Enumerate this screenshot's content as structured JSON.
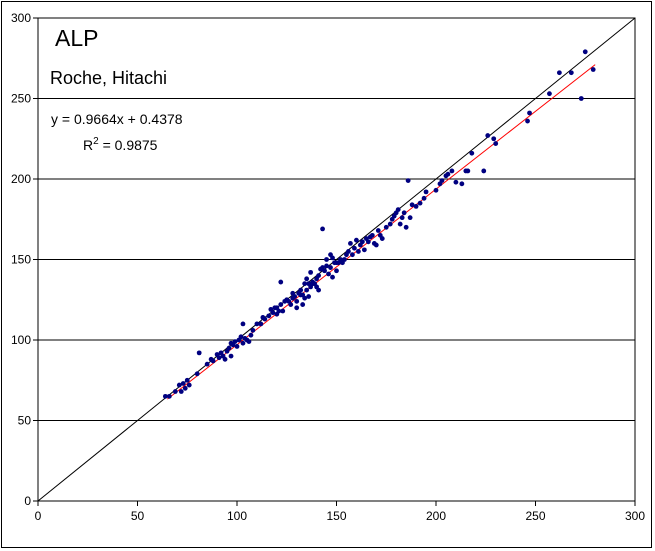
{
  "chart_data": {
    "type": "scatter",
    "title": "ALP",
    "subtitle": "Roche, Hitachi",
    "regression": {
      "equation": "y = 0.9664x + 0.4378",
      "r2_prefix": "R",
      "r2_exp": "2",
      "r2_value": " = 0.9875",
      "slope": 0.9664,
      "intercept": 0.4378,
      "x_range": [
        65,
        280
      ],
      "color": "#ff0000"
    },
    "identity_line": {
      "x_range": [
        0,
        300
      ],
      "color": "#000000"
    },
    "xlim": [
      0,
      300
    ],
    "ylim": [
      0,
      300
    ],
    "xticks": [
      0,
      50,
      100,
      150,
      200,
      250,
      300
    ],
    "yticks": [
      0,
      50,
      100,
      150,
      200,
      250,
      300
    ],
    "grid": "horizontal",
    "point_color": "#000080",
    "x": [
      64,
      66,
      69,
      71,
      72,
      73,
      74,
      75,
      76,
      80,
      81,
      85,
      87,
      88,
      90,
      91,
      92,
      93,
      94,
      95,
      96,
      97,
      97,
      98,
      99,
      100,
      101,
      102,
      103,
      103,
      104,
      105,
      106,
      107,
      108,
      110,
      112,
      113,
      114,
      116,
      117,
      118,
      119,
      120,
      120,
      121,
      122,
      122,
      123,
      124,
      125,
      126,
      127,
      128,
      128,
      129,
      130,
      130,
      131,
      132,
      132,
      133,
      133,
      134,
      134,
      135,
      135,
      136,
      136,
      137,
      137,
      138,
      138,
      139,
      140,
      140,
      141,
      141,
      142,
      143,
      143,
      144,
      145,
      145,
      146,
      147,
      147,
      148,
      148,
      149,
      150,
      150,
      151,
      152,
      153,
      154,
      155,
      156,
      157,
      158,
      159,
      160,
      161,
      162,
      163,
      164,
      165,
      166,
      167,
      168,
      169,
      170,
      171,
      172,
      173,
      175,
      177,
      178,
      179,
      180,
      181,
      182,
      183,
      184,
      185,
      186,
      187,
      188,
      190,
      192,
      194,
      195,
      200,
      202,
      203,
      205,
      206,
      208,
      210,
      213,
      215,
      216,
      218,
      224,
      226,
      229,
      230,
      246,
      247,
      257,
      262,
      268,
      273,
      275,
      279
    ],
    "y": [
      65,
      65,
      68,
      72,
      68,
      73,
      70,
      75,
      72,
      79,
      92,
      85,
      88,
      87,
      91,
      89,
      92,
      90,
      88,
      93,
      95,
      98,
      90,
      97,
      99,
      96,
      100,
      102,
      110,
      98,
      101,
      100,
      99,
      103,
      106,
      110,
      110,
      114,
      113,
      115,
      119,
      117,
      120,
      120,
      116,
      118,
      122,
      136,
      118,
      124,
      125,
      124,
      122,
      126,
      129,
      127,
      124,
      120,
      129,
      128,
      131,
      128,
      122,
      126,
      135,
      131,
      138,
      127,
      135,
      133,
      142,
      136,
      135,
      135,
      133,
      138,
      140,
      131,
      144,
      145,
      169,
      143,
      146,
      150,
      141,
      145,
      153,
      151,
      139,
      148,
      148,
      143,
      148,
      150,
      148,
      150,
      153,
      155,
      160,
      153,
      157,
      162,
      155,
      159,
      161,
      156,
      163,
      161,
      164,
      165,
      160,
      159,
      168,
      165,
      163,
      170,
      172,
      175,
      177,
      179,
      181,
      172,
      176,
      179,
      170,
      199,
      176,
      184,
      183,
      185,
      188,
      192,
      193,
      197,
      199,
      202,
      203,
      205,
      198,
      197,
      205,
      205,
      216,
      205,
      227,
      225,
      222,
      236,
      241,
      253,
      266,
      266,
      250,
      279,
      268
    ]
  }
}
